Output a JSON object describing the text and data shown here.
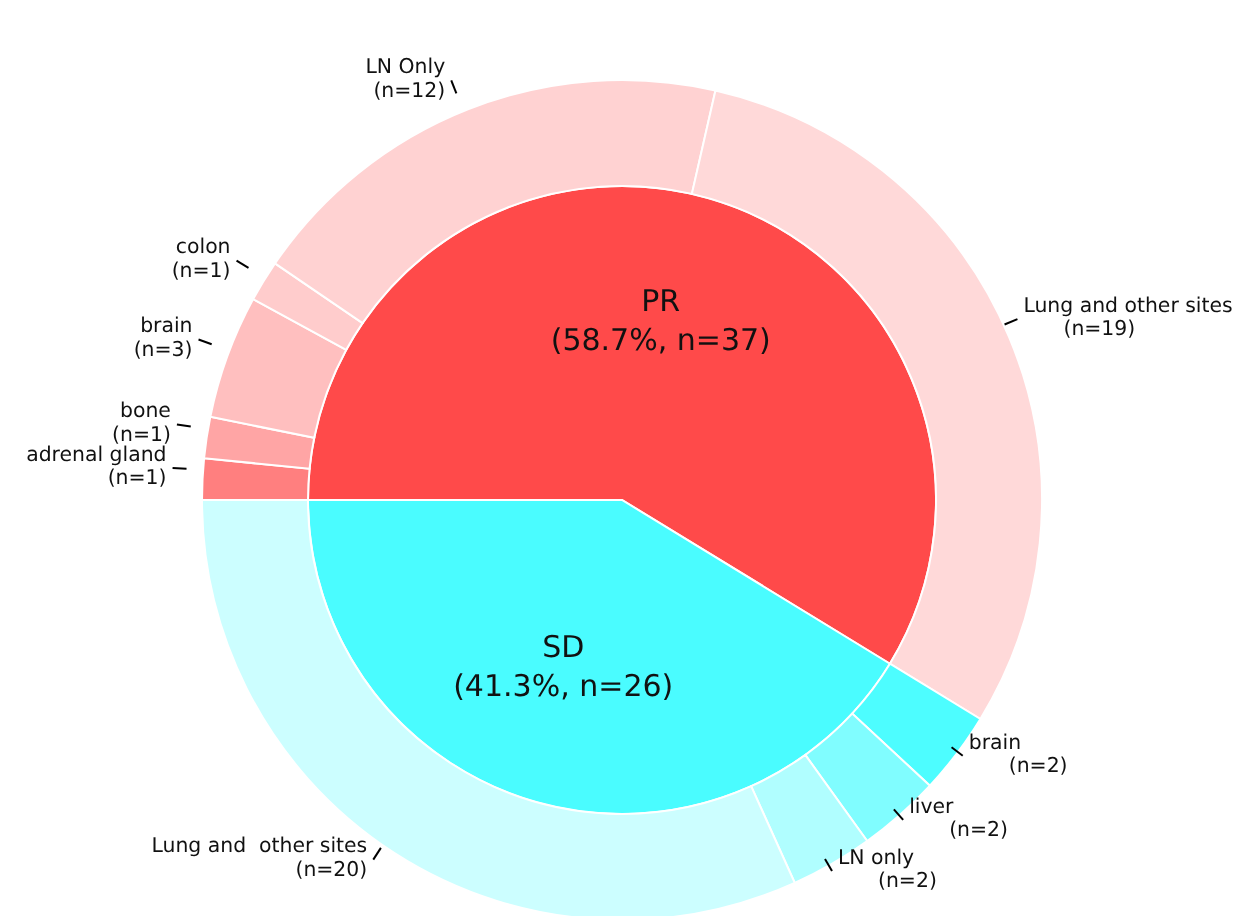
{
  "chart_data": [
    {
      "type": "pie",
      "categories": [
        "PR",
        "SD"
      ],
      "values": [
        37,
        26
      ],
      "colors": [
        "#ff4a4a",
        "#4afcff"
      ],
      "value_labels": [
        "(58.7%, n=37)",
        "(41.3%, n=26)"
      ]
    },
    {
      "type": "donut",
      "categories": [
        "adrenal gland",
        "bone",
        "brain",
        "colon",
        "LN Only",
        "Lung and other sites",
        "brain",
        "liver",
        "LN only",
        "Lung and  other sites"
      ],
      "values": [
        1,
        1,
        3,
        1,
        12,
        19,
        2,
        2,
        2,
        20
      ],
      "colors": [
        "#ff7f7f",
        "#ffa5a5",
        "#ffbfbf",
        "#ffcccc",
        "#ffd2d2",
        "#ffd9d9",
        "#4dfdff",
        "#80fdff",
        "#b0feff",
        "#ccfeff"
      ],
      "value_labels": [
        "(n=1)",
        "(n=1)",
        "(n=3)",
        "(n=1)",
        "(n=12)",
        "(n=19)",
        "(n=2)",
        "(n=2)",
        "(n=2)",
        "(n=20)"
      ]
    }
  ]
}
